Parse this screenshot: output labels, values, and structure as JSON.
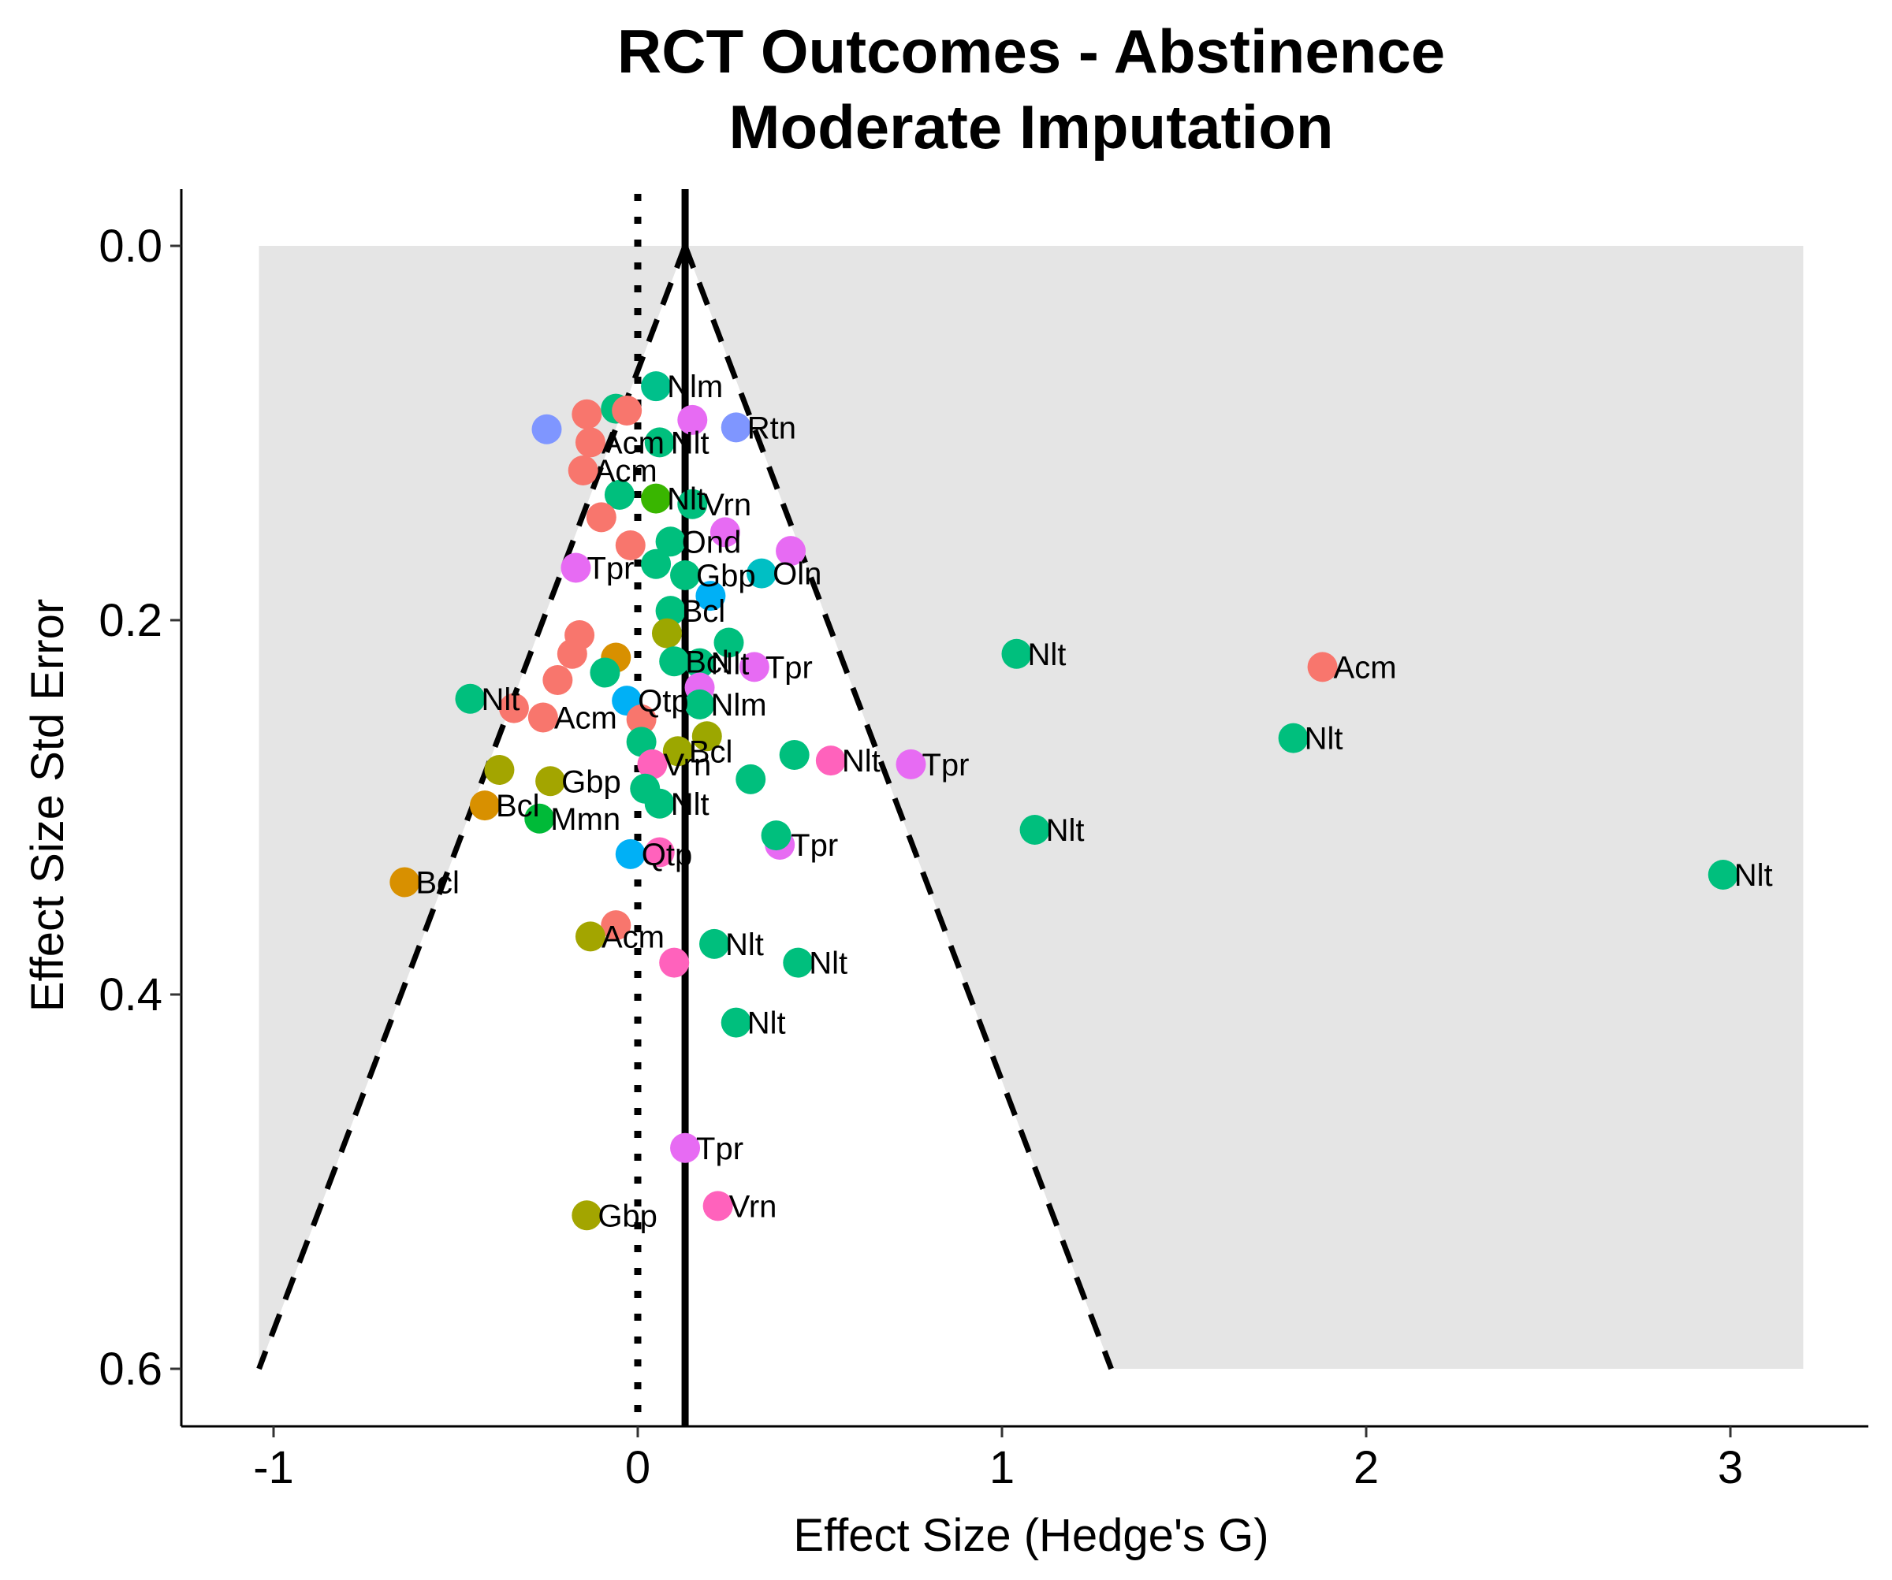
{
  "chart_data": {
    "type": "scatter",
    "title": "RCT Outcomes - Abstinence",
    "subtitle": "Moderate Imputation",
    "xlabel": "Effect Size (Hedge's G)",
    "ylabel": "Effect Size Std Error",
    "xlim": [
      -1.25,
      3.4
    ],
    "ylim": [
      0.615,
      -0.015
    ],
    "y_reversed": true,
    "xticks": [
      -1,
      0,
      1,
      2,
      3
    ],
    "xtick_labels": [
      "-1",
      "0",
      "1",
      "2",
      "3"
    ],
    "yticks": [
      0.0,
      0.2,
      0.4,
      0.6
    ],
    "ytick_labels": [
      "0.0",
      "0.2",
      "0.4",
      "0.6"
    ],
    "grid": false,
    "legend": "none",
    "shaded_region": {
      "x": [
        -1.04,
        3.2
      ],
      "y": [
        0,
        0.6
      ],
      "color": "#e5e5e5"
    },
    "reference_lines": {
      "pooled_effect": 0.13,
      "null_effect": 0,
      "funnel_apex": {
        "x": 0.13,
        "y": 0
      },
      "funnel_base": {
        "y": 0.6,
        "left_x": -1.04,
        "right_x": 1.3
      }
    },
    "colors": {
      "Acm": "#F8766D",
      "Bcl": "#D89000",
      "Gbp": "#A3A500",
      "Vrn": "#FF62BC",
      "Mmn": "#00BA38",
      "Nlm": "#00C08B",
      "Nlt": "#00BF7D",
      "Ond": "#00C1AA",
      "Oln": "#00BFC4",
      "Qtp": "#00B0F6",
      "Rtn": "#7F96FF",
      "Tpr": "#E76BF3",
      "Other": "#39B600",
      "Vrn2": "#9CA700"
    },
    "points": [
      {
        "x": 0.05,
        "y": 0.075,
        "g": "Nlm",
        "label": "Nlm"
      },
      {
        "x": -0.25,
        "y": 0.098,
        "g": "Rtn",
        "label": ""
      },
      {
        "x": 0.15,
        "y": 0.093,
        "g": "Tpr",
        "label": ""
      },
      {
        "x": 0.27,
        "y": 0.097,
        "g": "Rtn",
        "label": "Rtn"
      },
      {
        "x": -0.14,
        "y": 0.09,
        "g": "Acm",
        "label": ""
      },
      {
        "x": -0.06,
        "y": 0.087,
        "g": "Nlt",
        "label": ""
      },
      {
        "x": -0.03,
        "y": 0.088,
        "g": "Acm",
        "label": ""
      },
      {
        "x": -0.13,
        "y": 0.105,
        "g": "Acm",
        "label": "Acm"
      },
      {
        "x": 0.06,
        "y": 0.105,
        "g": "Nlt",
        "label": "Nlt"
      },
      {
        "x": -0.15,
        "y": 0.12,
        "g": "Acm",
        "label": "Acm"
      },
      {
        "x": -0.05,
        "y": 0.133,
        "g": "Nlt",
        "label": ""
      },
      {
        "x": 0.05,
        "y": 0.135,
        "g": "Other",
        "label": "Nlt"
      },
      {
        "x": 0.15,
        "y": 0.138,
        "g": "Nlt",
        "label": "Vrn"
      },
      {
        "x": -0.1,
        "y": 0.145,
        "g": "Acm",
        "label": ""
      },
      {
        "x": 0.24,
        "y": 0.153,
        "g": "Tpr",
        "label": ""
      },
      {
        "x": -0.02,
        "y": 0.16,
        "g": "Acm",
        "label": ""
      },
      {
        "x": 0.09,
        "y": 0.158,
        "g": "Nlt",
        "label": "Ond"
      },
      {
        "x": 0.42,
        "y": 0.163,
        "g": "Tpr",
        "label": ""
      },
      {
        "x": -0.17,
        "y": 0.172,
        "g": "Tpr",
        "label": "Tpr"
      },
      {
        "x": 0.05,
        "y": 0.17,
        "g": "Nlt",
        "label": ""
      },
      {
        "x": 0.13,
        "y": 0.176,
        "g": "Nlt",
        "label": "Gbp"
      },
      {
        "x": 0.34,
        "y": 0.175,
        "g": "Oln",
        "label": "Oln"
      },
      {
        "x": 0.2,
        "y": 0.187,
        "g": "Qtp",
        "label": ""
      },
      {
        "x": 0.09,
        "y": 0.195,
        "g": "Nlt",
        "label": "Bcl"
      },
      {
        "x": 0.25,
        "y": 0.212,
        "g": "Nlt",
        "label": ""
      },
      {
        "x": -0.16,
        "y": 0.208,
        "g": "Acm",
        "label": ""
      },
      {
        "x": 0.08,
        "y": 0.207,
        "g": "Vrn2",
        "label": ""
      },
      {
        "x": -0.06,
        "y": 0.22,
        "g": "Bcl",
        "label": ""
      },
      {
        "x": -0.18,
        "y": 0.218,
        "g": "Acm",
        "label": ""
      },
      {
        "x": 0.1,
        "y": 0.222,
        "g": "Nlt",
        "label": "Bcl"
      },
      {
        "x": 0.17,
        "y": 0.223,
        "g": "Nlt",
        "label": "Nlt"
      },
      {
        "x": 0.32,
        "y": 0.225,
        "g": "Tpr",
        "label": "Tpr"
      },
      {
        "x": -0.09,
        "y": 0.228,
        "g": "Nlt",
        "label": ""
      },
      {
        "x": -0.22,
        "y": 0.232,
        "g": "Acm",
        "label": ""
      },
      {
        "x": 0.17,
        "y": 0.236,
        "g": "Tpr",
        "label": ""
      },
      {
        "x": 1.04,
        "y": 0.218,
        "g": "Nlt",
        "label": "Nlt"
      },
      {
        "x": 1.88,
        "y": 0.225,
        "g": "Acm",
        "label": "Acm"
      },
      {
        "x": -0.46,
        "y": 0.242,
        "g": "Nlt",
        "label": "Nlt"
      },
      {
        "x": -0.34,
        "y": 0.247,
        "g": "Acm",
        "label": ""
      },
      {
        "x": -0.26,
        "y": 0.252,
        "g": "Acm",
        "label": "Acm"
      },
      {
        "x": -0.03,
        "y": 0.243,
        "g": "Qtp",
        "label": "Qtp"
      },
      {
        "x": 0.17,
        "y": 0.245,
        "g": "Nlt",
        "label": "Nlm"
      },
      {
        "x": 0.01,
        "y": 0.253,
        "g": "Acm",
        "label": ""
      },
      {
        "x": 0.19,
        "y": 0.262,
        "g": "Vrn2",
        "label": ""
      },
      {
        "x": 0.01,
        "y": 0.265,
        "g": "Nlt",
        "label": ""
      },
      {
        "x": 1.8,
        "y": 0.263,
        "g": "Nlt",
        "label": "Nlt"
      },
      {
        "x": 0.11,
        "y": 0.27,
        "g": "Vrn2",
        "label": "Bcl"
      },
      {
        "x": 0.43,
        "y": 0.272,
        "g": "Nlt",
        "label": ""
      },
      {
        "x": 0.53,
        "y": 0.275,
        "g": "Vrn",
        "label": "Nlt"
      },
      {
        "x": 0.75,
        "y": 0.277,
        "g": "Tpr",
        "label": "Tpr"
      },
      {
        "x": 0.04,
        "y": 0.277,
        "g": "Vrn",
        "label": "Vrn"
      },
      {
        "x": -0.38,
        "y": 0.28,
        "g": "Gbp",
        "label": ""
      },
      {
        "x": -0.24,
        "y": 0.286,
        "g": "Gbp",
        "label": "Gbp"
      },
      {
        "x": 0.31,
        "y": 0.285,
        "g": "Nlt",
        "label": ""
      },
      {
        "x": 0.02,
        "y": 0.29,
        "g": "Nlt",
        "label": ""
      },
      {
        "x": 0.06,
        "y": 0.298,
        "g": "Nlt",
        "label": "Nlt"
      },
      {
        "x": -0.42,
        "y": 0.299,
        "g": "Bcl",
        "label": "Bcl"
      },
      {
        "x": -0.27,
        "y": 0.306,
        "g": "Mmn",
        "label": "Mmn"
      },
      {
        "x": 1.09,
        "y": 0.312,
        "g": "Nlt",
        "label": "Nlt"
      },
      {
        "x": 0.39,
        "y": 0.32,
        "g": "Tpr",
        "label": "Tpr"
      },
      {
        "x": 0.38,
        "y": 0.315,
        "g": "Nlt",
        "label": ""
      },
      {
        "x": 0.06,
        "y": 0.324,
        "g": "Vrn",
        "label": ""
      },
      {
        "x": -0.02,
        "y": 0.325,
        "g": "Qtp",
        "label": "Qtp"
      },
      {
        "x": 2.98,
        "y": 0.336,
        "g": "Nlt",
        "label": "Nlt"
      },
      {
        "x": -0.64,
        "y": 0.34,
        "g": "Bcl",
        "label": "Bcl"
      },
      {
        "x": -0.06,
        "y": 0.363,
        "g": "Acm",
        "label": ""
      },
      {
        "x": -0.13,
        "y": 0.369,
        "g": "Gbp",
        "label": "Acm"
      },
      {
        "x": 0.21,
        "y": 0.373,
        "g": "Nlt",
        "label": "Nlt"
      },
      {
        "x": 0.44,
        "y": 0.383,
        "g": "Nlt",
        "label": "Nlt"
      },
      {
        "x": 0.1,
        "y": 0.383,
        "g": "Vrn",
        "label": ""
      },
      {
        "x": 0.27,
        "y": 0.415,
        "g": "Nlt",
        "label": "Nlt"
      },
      {
        "x": 0.13,
        "y": 0.482,
        "g": "Tpr",
        "label": "Tpr"
      },
      {
        "x": 0.22,
        "y": 0.513,
        "g": "Vrn",
        "label": "Vrn"
      },
      {
        "x": -0.14,
        "y": 0.518,
        "g": "Gbp",
        "label": "Gbp"
      }
    ]
  }
}
